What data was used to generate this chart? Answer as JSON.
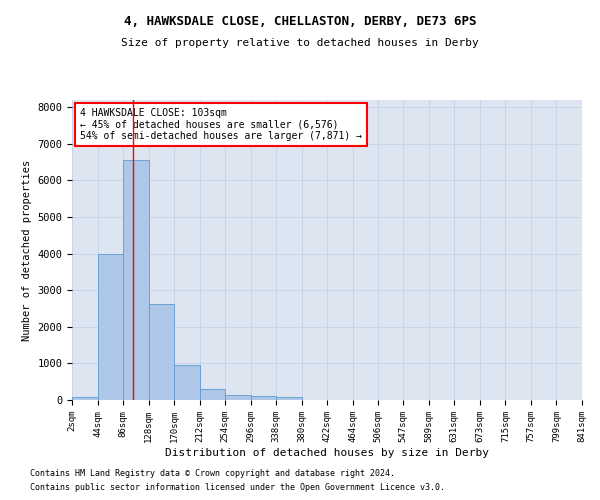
{
  "title_line1": "4, HAWKSDALE CLOSE, CHELLASTON, DERBY, DE73 6PS",
  "title_line2": "Size of property relative to detached houses in Derby",
  "xlabel": "Distribution of detached houses by size in Derby",
  "ylabel": "Number of detached properties",
  "footnote1": "Contains HM Land Registry data © Crown copyright and database right 2024.",
  "footnote2": "Contains public sector information licensed under the Open Government Licence v3.0.",
  "annotation_line1": "4 HAWKSDALE CLOSE: 103sqm",
  "annotation_line2": "← 45% of detached houses are smaller (6,576)",
  "annotation_line3": "54% of semi-detached houses are larger (7,871) →",
  "bin_edges": [
    2,
    44,
    86,
    128,
    170,
    212,
    254,
    296,
    338,
    380,
    422,
    464,
    506,
    547,
    589,
    631,
    673,
    715,
    757,
    799,
    841
  ],
  "bar_heights": [
    80,
    3980,
    6570,
    2620,
    950,
    300,
    130,
    110,
    90,
    0,
    0,
    0,
    0,
    0,
    0,
    0,
    0,
    0,
    0,
    0
  ],
  "bar_color": "#aec6e8",
  "bar_edge_color": "#5b9bd5",
  "grid_color": "#c8d4e8",
  "background_color": "#dde5f0",
  "red_line_x": 103,
  "ylim": [
    0,
    8200
  ],
  "xlim": [
    2,
    841
  ],
  "yticks": [
    0,
    1000,
    2000,
    3000,
    4000,
    5000,
    6000,
    7000,
    8000
  ]
}
